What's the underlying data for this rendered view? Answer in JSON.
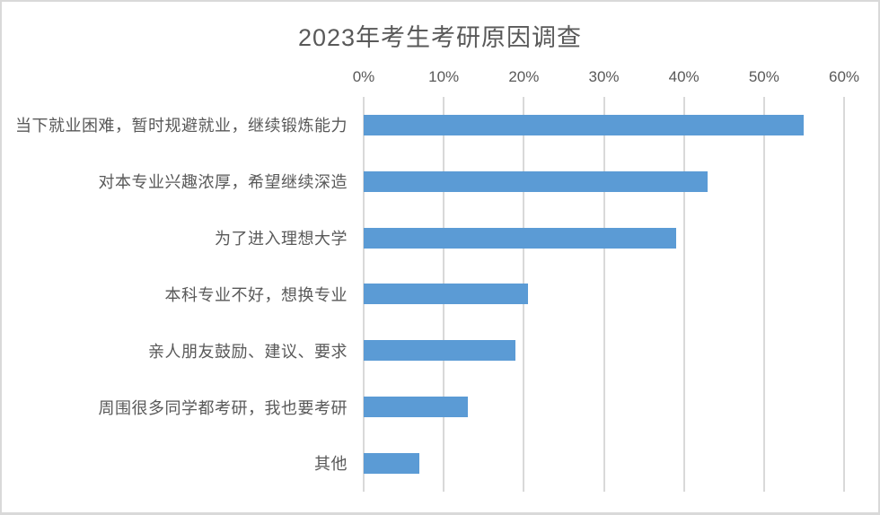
{
  "title": "2023年考生考研原因调查",
  "colors": {
    "bar": "#5b9bd5",
    "gridline": "#d9d9d9",
    "text": "#595959",
    "background": "#ffffff",
    "frame_border": "#d9d9d9"
  },
  "chart_data": {
    "type": "bar",
    "orientation": "horizontal",
    "title": "2023年考生考研原因调查",
    "categories": [
      "当下就业困难，暂时规避就业，继续锻炼能力",
      "对本专业兴趣浓厚，希望继续深造",
      "为了进入理想大学",
      "本科专业不好，想换专业",
      "亲人朋友鼓励、建议、要求",
      "周围很多同学都考研，我也要考研",
      "其他"
    ],
    "values": [
      55,
      43,
      39,
      20.5,
      19,
      13,
      7
    ],
    "unit": "%",
    "x_axis": {
      "position": "top",
      "min": 0,
      "max": 60,
      "ticks": [
        "0%",
        "10%",
        "20%",
        "30%",
        "40%",
        "50%",
        "60%"
      ]
    },
    "grid": true,
    "legend": "none",
    "data_labels": false
  }
}
